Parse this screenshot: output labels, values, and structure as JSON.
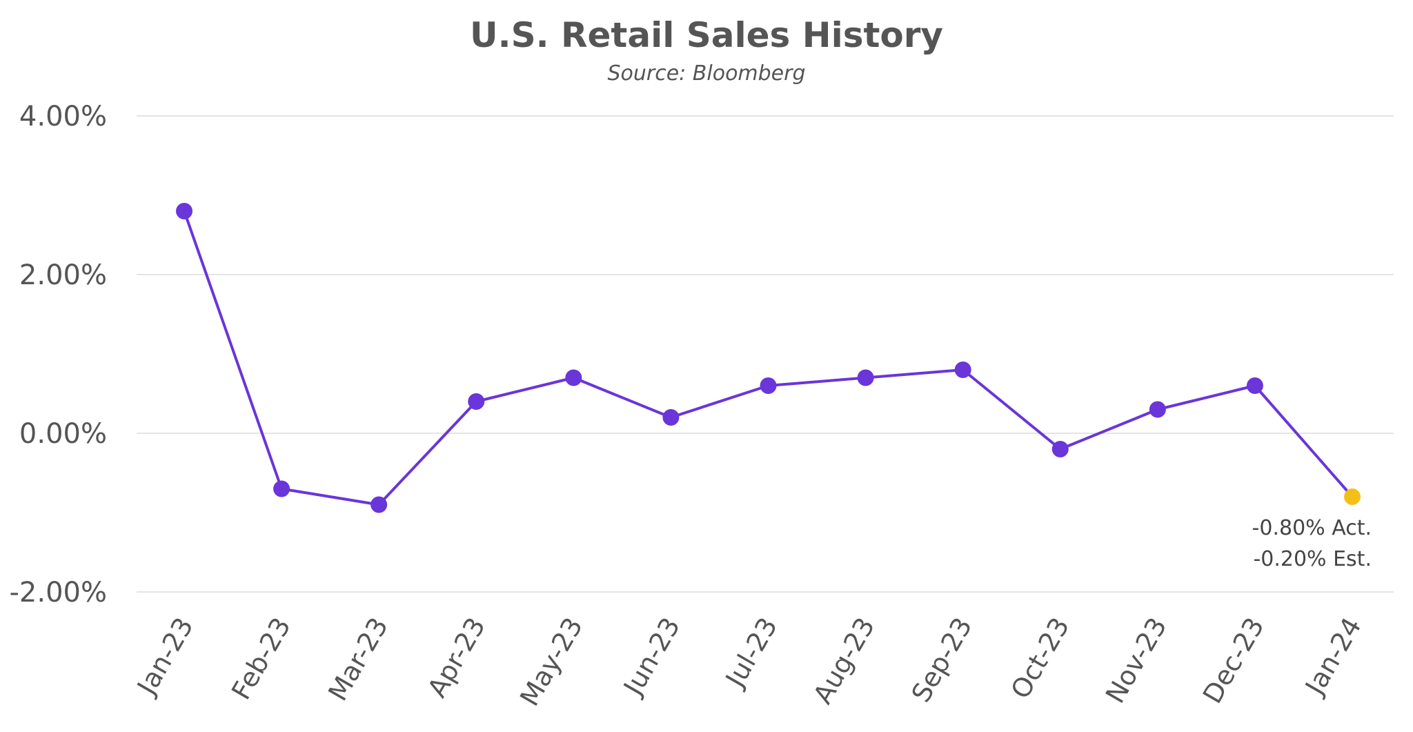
{
  "chart_data": {
    "type": "line",
    "title": "U.S. Retail Sales History",
    "subtitle": "Source: Bloomberg",
    "xlabel": "",
    "ylabel": "",
    "ylim": [
      -2.0,
      4.0
    ],
    "yticks": [
      4.0,
      2.0,
      0.0,
      -2.0
    ],
    "ytick_labels": [
      "4.00%",
      "2.00%",
      "0.00%",
      "-2.00%"
    ],
    "grid": true,
    "legend": "none",
    "categories": [
      "Jan-23",
      "Feb-23",
      "Mar-23",
      "Apr-23",
      "May-23",
      "Jun-23",
      "Jul-23",
      "Aug-23",
      "Sep-23",
      "Oct-23",
      "Nov-23",
      "Dec-23",
      "Jan-24"
    ],
    "series": [
      {
        "values": [
          2.8,
          -0.7,
          -0.9,
          0.4,
          0.7,
          0.2,
          0.6,
          0.7,
          0.8,
          -0.2,
          0.3,
          0.6,
          -0.8
        ],
        "color": "#6a35d9",
        "highlight_index": 12,
        "highlight_color": "#f5bf1a"
      }
    ],
    "annotation": {
      "point_index": 12,
      "lines": [
        "-0.80% Act.",
        "-0.20% Est."
      ]
    }
  }
}
